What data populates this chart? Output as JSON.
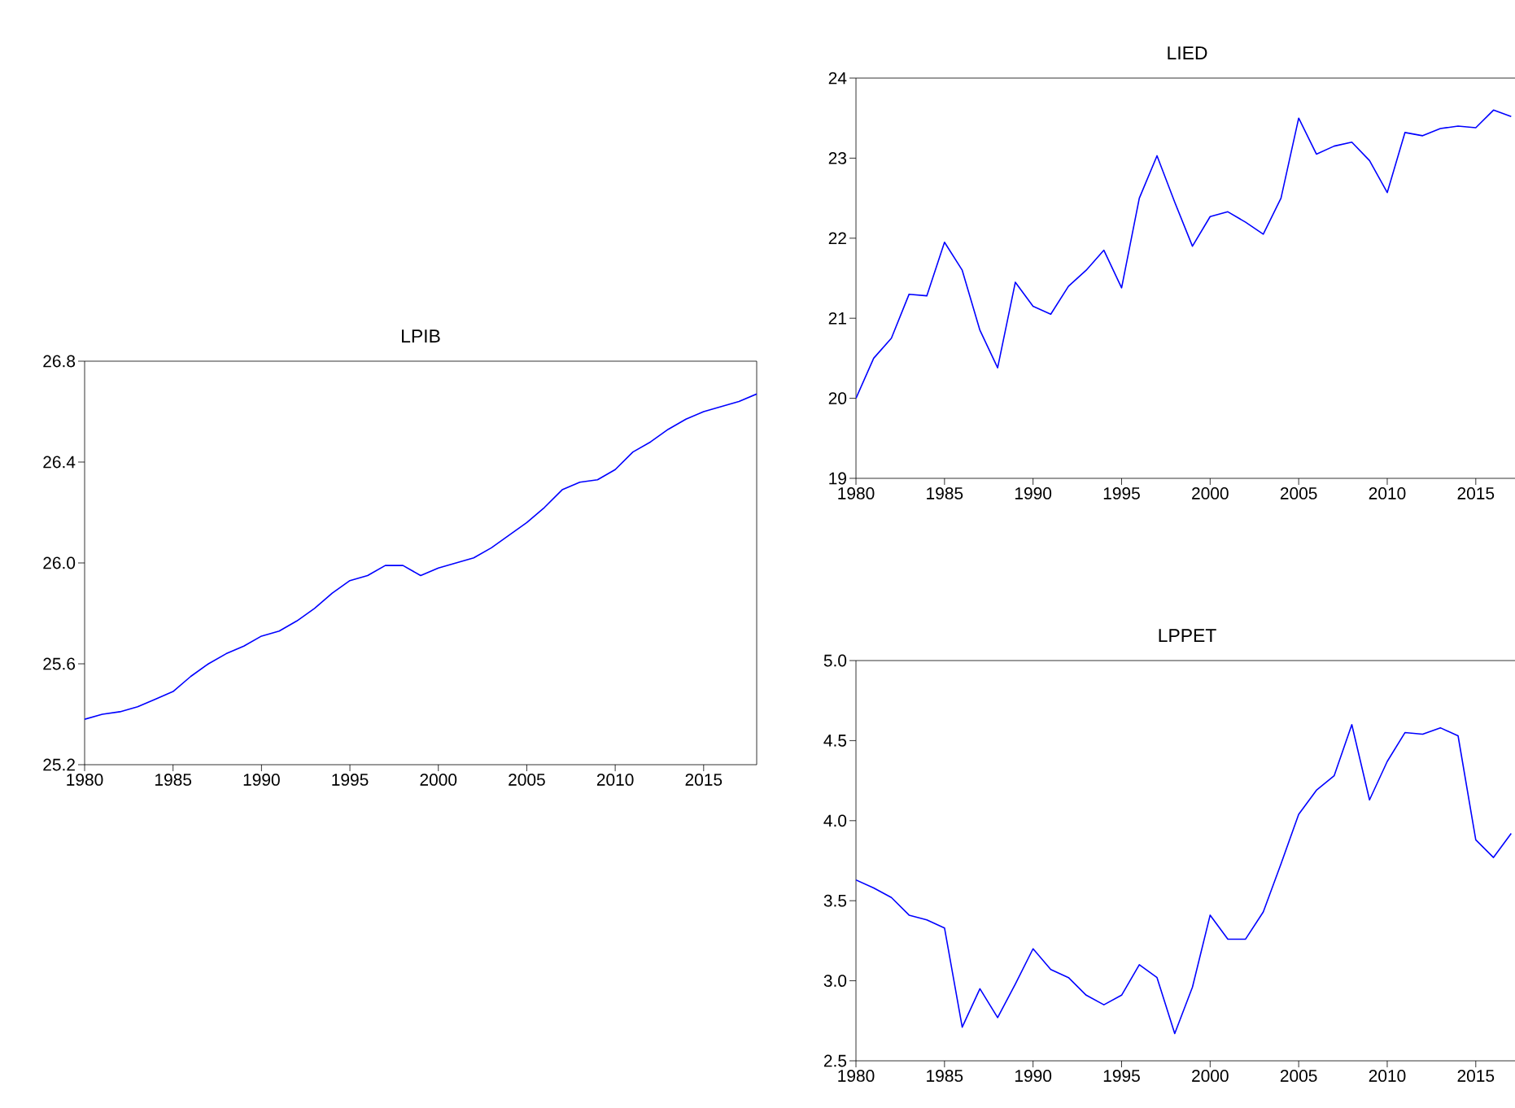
{
  "chart_data": [
    {
      "type": "line",
      "title": "LPIB",
      "color": "#0000ff",
      "x": [
        1980,
        1981,
        1982,
        1983,
        1984,
        1985,
        1986,
        1987,
        1988,
        1989,
        1990,
        1991,
        1992,
        1993,
        1994,
        1995,
        1996,
        1997,
        1998,
        1999,
        2000,
        2001,
        2002,
        2003,
        2004,
        2005,
        2006,
        2007,
        2008,
        2009,
        2010,
        2011,
        2012,
        2013,
        2014,
        2015,
        2016,
        2017,
        2018
      ],
      "values": [
        25.38,
        25.4,
        25.41,
        25.43,
        25.46,
        25.49,
        25.55,
        25.6,
        25.64,
        25.67,
        25.71,
        25.73,
        25.77,
        25.82,
        25.88,
        25.93,
        25.95,
        25.99,
        25.99,
        25.95,
        25.98,
        26.0,
        26.02,
        26.06,
        26.11,
        26.16,
        26.22,
        26.29,
        26.32,
        26.33,
        26.37,
        26.44,
        26.48,
        26.53,
        26.57,
        26.6,
        26.62,
        26.64,
        26.67
      ],
      "xlim": [
        1980,
        2018
      ],
      "xticks": [
        1980,
        1985,
        1990,
        1995,
        2000,
        2005,
        2010,
        2015
      ],
      "ylim": [
        25.2,
        26.8
      ],
      "yticks": [
        {
          "value": 25.2,
          "label": "25.2"
        },
        {
          "value": 25.6,
          "label": "25.6"
        },
        {
          "value": 26.0,
          "label": "26.0"
        },
        {
          "value": 26.4,
          "label": "26.4"
        },
        {
          "value": 26.8,
          "label": "26.8"
        }
      ]
    },
    {
      "type": "line",
      "title": "LIED",
      "color": "#0000ff",
      "x": [
        1980,
        1981,
        1982,
        1983,
        1984,
        1985,
        1986,
        1987,
        1988,
        1989,
        1990,
        1991,
        1992,
        1993,
        1994,
        1995,
        1996,
        1997,
        1998,
        1999,
        2000,
        2001,
        2002,
        2003,
        2004,
        2005,
        2006,
        2007,
        2008,
        2009,
        2010,
        2011,
        2012,
        2013,
        2014,
        2015,
        2016,
        2017
      ],
      "values": [
        20.0,
        20.5,
        20.75,
        21.3,
        21.28,
        21.95,
        21.6,
        20.85,
        20.38,
        21.45,
        21.15,
        21.05,
        21.4,
        21.6,
        21.85,
        21.38,
        22.5,
        23.03,
        22.45,
        21.9,
        22.27,
        22.33,
        22.2,
        22.05,
        22.5,
        23.5,
        23.05,
        23.15,
        23.2,
        22.97,
        22.57,
        23.32,
        23.28,
        23.37,
        23.4,
        23.38,
        23.6,
        23.52
      ],
      "xlim": [
        1980,
        2017.4
      ],
      "xticks": [
        1980,
        1985,
        1990,
        1995,
        2000,
        2005,
        2010,
        2015
      ],
      "ylim": [
        19,
        24
      ],
      "yticks": [
        19,
        20,
        21,
        22,
        23,
        24
      ]
    },
    {
      "type": "line",
      "title": "LPPET",
      "color": "#0000ff",
      "x": [
        1980,
        1981,
        1982,
        1983,
        1984,
        1985,
        1986,
        1987,
        1988,
        1989,
        1990,
        1991,
        1992,
        1993,
        1994,
        1995,
        1996,
        1997,
        1998,
        1999,
        2000,
        2001,
        2002,
        2003,
        2004,
        2005,
        2006,
        2007,
        2008,
        2009,
        2010,
        2011,
        2012,
        2013,
        2014,
        2015,
        2016,
        2017
      ],
      "values": [
        3.63,
        3.58,
        3.52,
        3.41,
        3.38,
        3.33,
        2.71,
        2.95,
        2.77,
        2.98,
        3.2,
        3.07,
        3.02,
        2.91,
        2.85,
        2.91,
        3.1,
        3.02,
        2.67,
        2.96,
        3.41,
        3.26,
        3.26,
        3.43,
        3.73,
        4.04,
        4.19,
        4.28,
        4.6,
        4.13,
        4.37,
        4.55,
        4.54,
        4.58,
        4.53,
        3.88,
        3.77,
        3.92
      ],
      "xlim": [
        1980,
        2017.4
      ],
      "xticks": [
        1980,
        1985,
        1990,
        1995,
        2000,
        2005,
        2010,
        2015
      ],
      "ylim": [
        2.5,
        5.0
      ],
      "yticks": [
        {
          "value": 2.5,
          "label": "2.5"
        },
        {
          "value": 3.0,
          "label": "3.0"
        },
        {
          "value": 3.5,
          "label": "3.5"
        },
        {
          "value": 4.0,
          "label": "4.0"
        },
        {
          "value": 4.5,
          "label": "4.5"
        },
        {
          "value": 5.0,
          "label": "5.0"
        }
      ]
    }
  ]
}
